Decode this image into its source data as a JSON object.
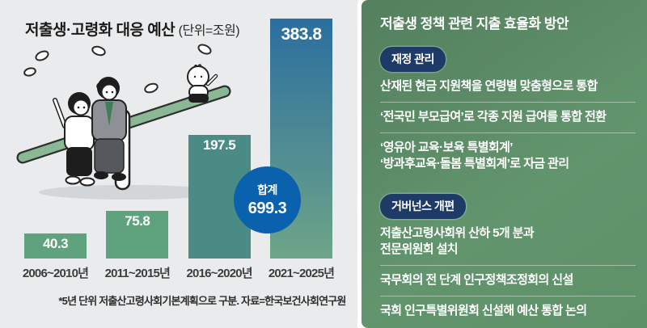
{
  "left_panel": {
    "title_main": "저출생·고령화 대응 예산",
    "title_unit": "(단위=조원)",
    "footnote": "*5년 단위 저출산고령사회기본계획으로 구분. 자료=한국보건사회연구원",
    "total_badge": {
      "label": "합계",
      "value": "699.3"
    }
  },
  "chart_data": {
    "type": "bar",
    "title": "저출생·고령화 대응 예산",
    "unit": "조원",
    "categories": [
      "2006~2010년",
      "2011~2015년",
      "2016~2020년",
      "2021~2025년"
    ],
    "values": [
      40.3,
      75.8,
      197.5,
      383.8
    ],
    "total": 699.3,
    "ylim": [
      0,
      390
    ],
    "grid": false,
    "legend": false,
    "bar_colors": [
      "#5fa27e",
      "#5fa27e",
      "#4a8c85",
      "gradient"
    ],
    "gradient_top": "#2b6e9f",
    "gradient_bottom": "#6ea588",
    "annotation": "합계 699.3"
  },
  "right_panel": {
    "title": "저출생 정책 관련 지출 효율화 방안",
    "sections": [
      {
        "badge": "재정 관리",
        "items": [
          [
            "산재된 현금 지원책을 연령별 맞춤형으로 통합"
          ],
          [
            "‘전국민 부모급여’로 각종 지원 급여를 통합 전환"
          ],
          [
            "‘영유아 교육·보육 특별회계’",
            "‘방과후교육·돌봄 특별회계’로 자금 관리"
          ]
        ]
      },
      {
        "badge": "거버넌스 개편",
        "items": [
          [
            "저출산고령사회위 산하 5개 분과",
            "전문위원회 설치"
          ],
          [
            "국무회의 전 단계 인구정책조정회의 신설"
          ],
          [
            "국회 인구특별위원회 신설해 예산 통합 논의"
          ]
        ]
      }
    ]
  },
  "colors": {
    "background": "#e9ebec",
    "bar_green": "#5fa27e",
    "bar_teal": "#4a8c85",
    "bar_gradient_top": "#2b6e9f",
    "bar_gradient_bottom": "#6ea588",
    "total_circle_blue": "#0a61ad",
    "badge_navy": "#1e3a66",
    "panel_green_dark": "#537f5d",
    "panel_green_light": "#62956d",
    "seesaw_green": "#8ab794"
  }
}
